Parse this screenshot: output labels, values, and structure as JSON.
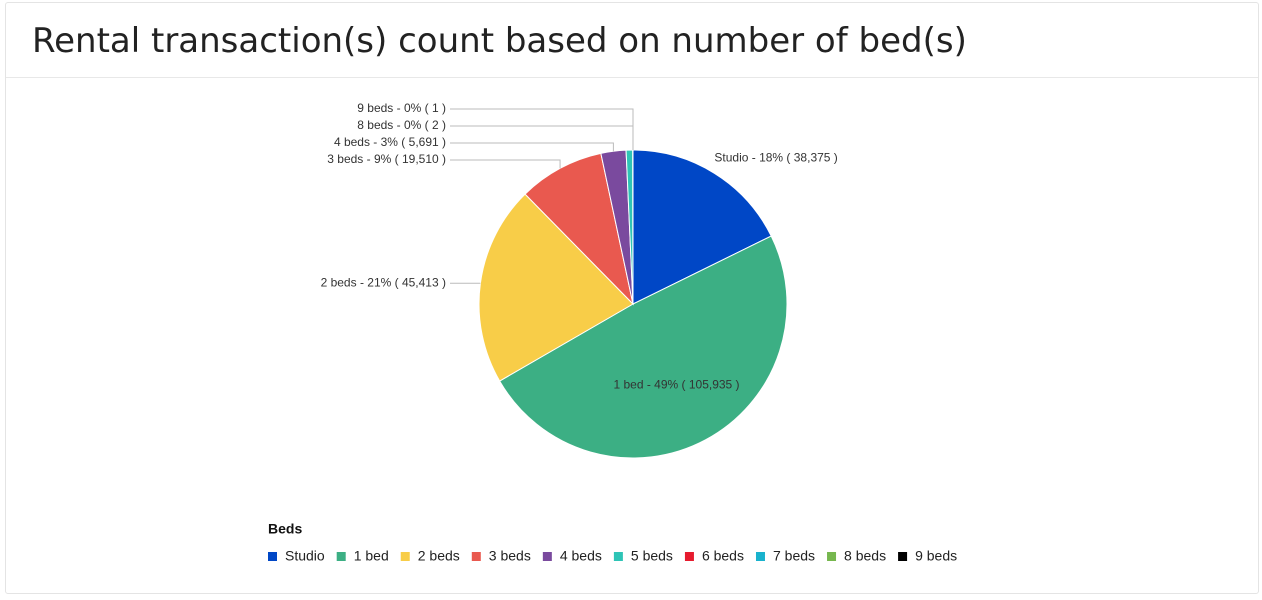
{
  "chart_data": {
    "type": "pie",
    "title": "Rental transaction(s) count based on number of bed(s)",
    "legend_title": "Beds",
    "categories": [
      "Studio",
      "1 bed",
      "2 beds",
      "3 beds",
      "4 beds",
      "5 beds",
      "6 beds",
      "7 beds",
      "8 beds",
      "9 beds"
    ],
    "values": [
      38375,
      105935,
      45413,
      19510,
      5691,
      1500,
      40,
      10,
      2,
      1
    ],
    "value_labels": [
      "Studio - 18% ( 38,375 )",
      "1 bed - 49% ( 105,935 )",
      "2 beds - 21% ( 45,413 )",
      "3 beds - 9% ( 19,510 )",
      "4 beds - 3% ( 5,691 )",
      null,
      null,
      null,
      "8 beds - 0% ( 2 )",
      "9 beds - 0% ( 1 )"
    ],
    "colors": [
      "#0047c6",
      "#3caf84",
      "#f8cd48",
      "#e9594f",
      "#7a4a9e",
      "#2ec4b6",
      "#e61b2e",
      "#19b2cd",
      "#76b74e",
      "#000000"
    ]
  }
}
